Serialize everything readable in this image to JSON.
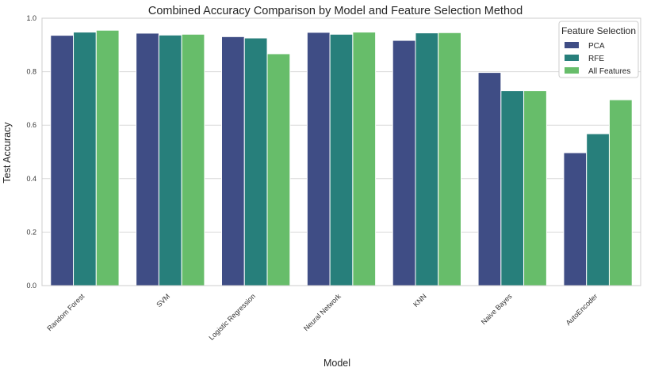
{
  "chart_data": {
    "type": "bar",
    "title": "Combined Accuracy Comparison by Model and Feature Selection Method",
    "xlabel": "Model",
    "ylabel": "Test Accuracy",
    "ylim": [
      0,
      1.0
    ],
    "yticks": [
      "0.0",
      "0.2",
      "0.4",
      "0.6",
      "0.8",
      "1.0"
    ],
    "grid": true,
    "legend_title": "Feature Selection",
    "legend_position": "top-right",
    "categories": [
      "Random Forest",
      "SVM",
      "Logistic Regression",
      "Neural Network",
      "KNN",
      "Naive Bayes",
      "AutoEncoder"
    ],
    "series": [
      {
        "name": "PCA",
        "color": "#3f4d85",
        "values": [
          0.936,
          0.944,
          0.931,
          0.947,
          0.917,
          0.797,
          0.497
        ]
      },
      {
        "name": "RFE",
        "color": "#277f7b",
        "values": [
          0.948,
          0.937,
          0.926,
          0.94,
          0.945,
          0.729,
          0.568
        ]
      },
      {
        "name": "All Features",
        "color": "#67bd6a",
        "values": [
          0.955,
          0.94,
          0.867,
          0.948,
          0.946,
          0.729,
          0.695
        ]
      }
    ]
  }
}
